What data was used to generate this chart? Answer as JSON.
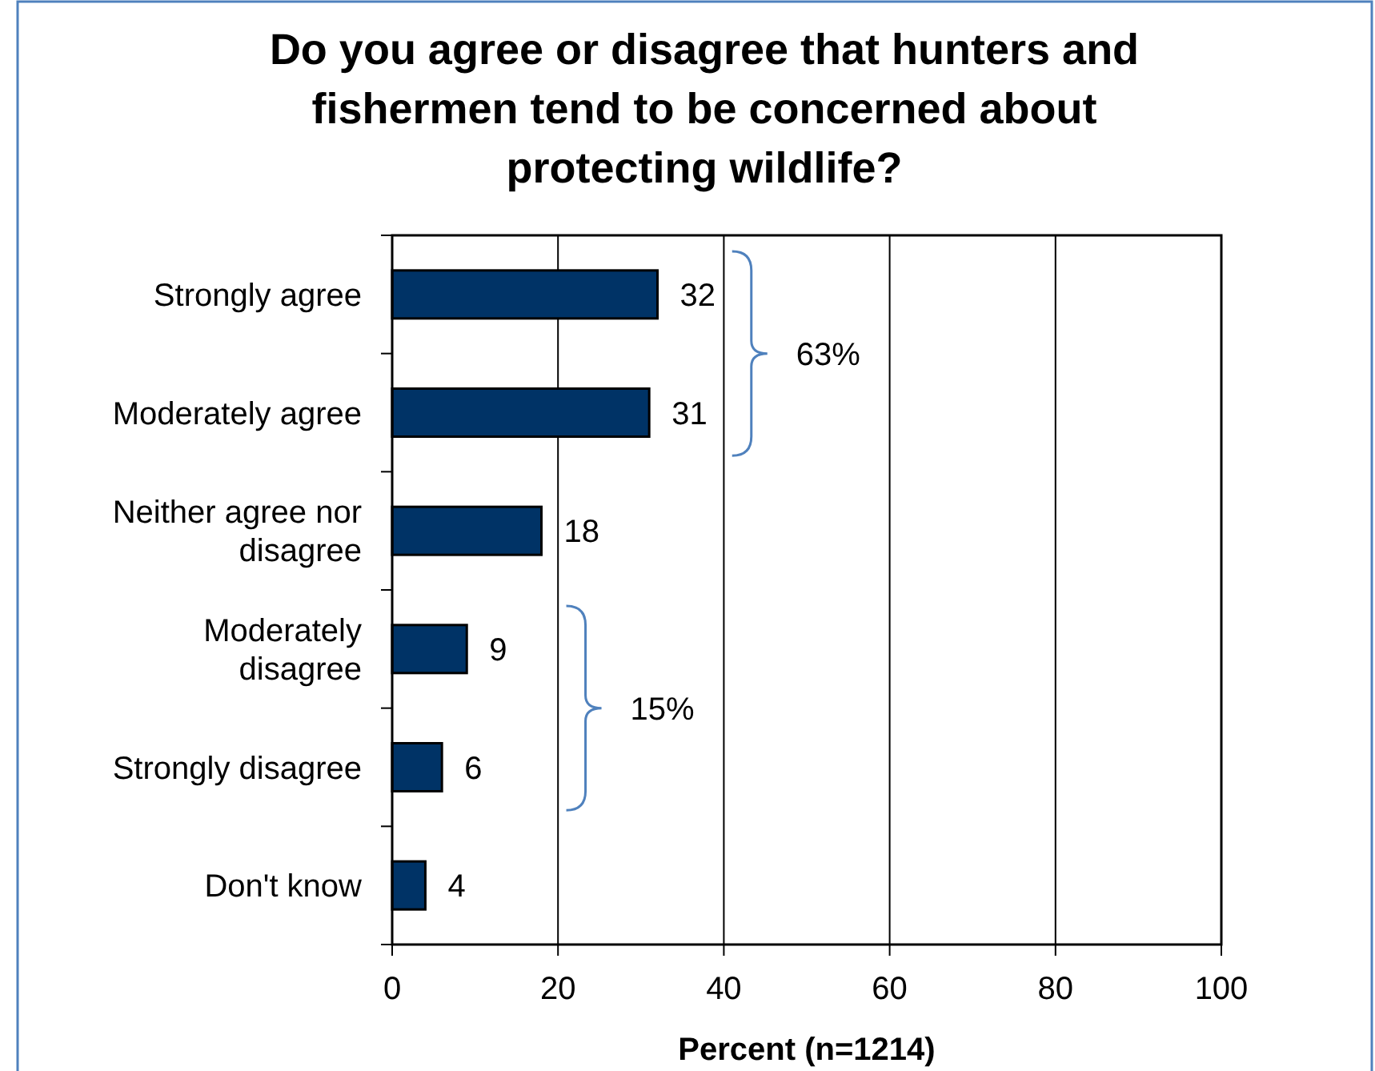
{
  "chart_data": {
    "type": "bar",
    "orientation": "horizontal",
    "title": "Do you agree or disagree that hunters and fishermen tend to be concerned about protecting wildlife?",
    "xlabel": "Percent (n=1214)",
    "categories": [
      "Strongly agree",
      "Moderately agree",
      "Neither agree nor disagree",
      "Moderately disagree",
      "Strongly disagree",
      "Don't know"
    ],
    "values": [
      32,
      31,
      18,
      9,
      6,
      4
    ],
    "color": "#003366",
    "data_labels": true,
    "xlim": [
      0,
      100
    ],
    "xticks": [
      0,
      20,
      40,
      60,
      80,
      100
    ],
    "grid": "x",
    "annotations": [
      "63%",
      "15%"
    ]
  }
}
